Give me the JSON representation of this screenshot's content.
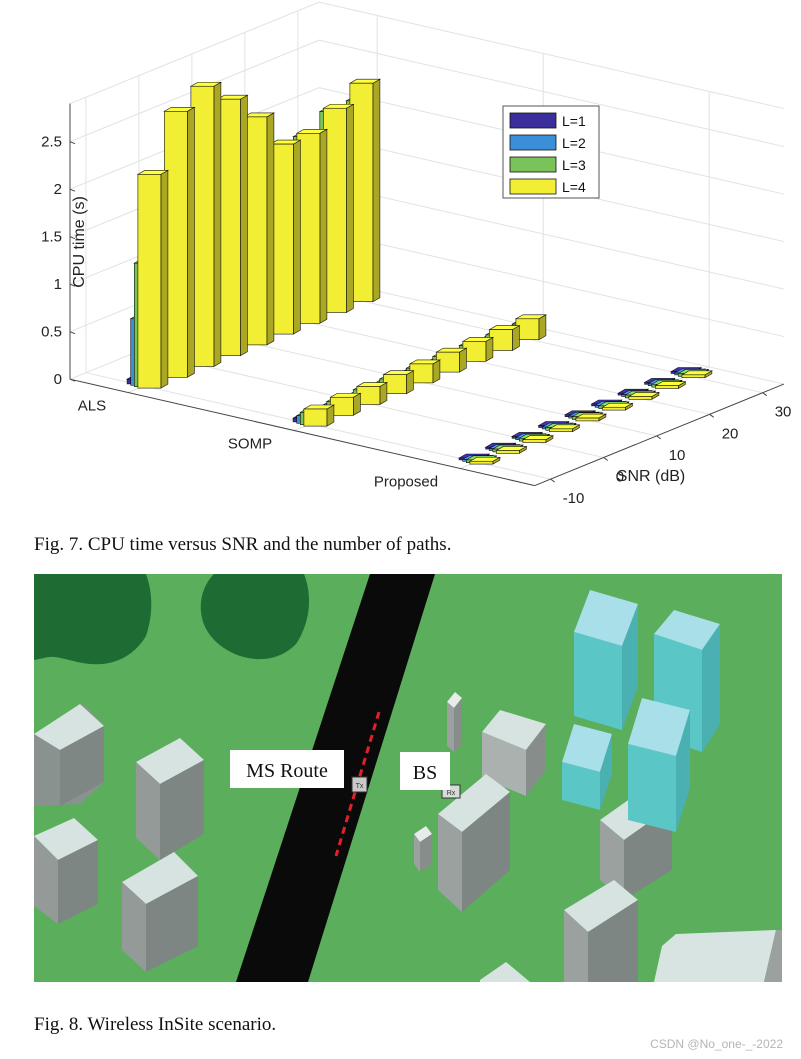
{
  "figure7": {
    "caption": "Fig. 7.  CPU time versus SNR and the number of paths."
  },
  "chart_data": {
    "type": "bar",
    "subtype": "3d-grouped",
    "title": "",
    "ylabel": "CPU time (s)",
    "xlabel": "SNR (dB)",
    "zlim": [
      0,
      2.9
    ],
    "z_ticks": [
      "0",
      "0.5",
      "1",
      "1.5",
      "2",
      "2.5"
    ],
    "snr_values": [
      -10,
      -5,
      0,
      5,
      10,
      15,
      20,
      25,
      30
    ],
    "snr_tick_labels": [
      "-10",
      "0",
      "10",
      "20",
      "30"
    ],
    "methods": [
      "ALS",
      "SOMP",
      "Proposed"
    ],
    "legend": {
      "entries": [
        "L=1",
        "L=2",
        "L=3",
        "L=4"
      ],
      "location": "top-right"
    },
    "colors": [
      "#3a2d9c",
      "#3a8fd8",
      "#7ac25a",
      "#f2ee34"
    ],
    "grid": true,
    "series": [
      {
        "method": "ALS",
        "name": "L=1",
        "values": [
          0.05,
          0.08,
          0.08,
          0.08,
          0.07,
          0.08,
          0.07,
          0.08,
          0.08
        ]
      },
      {
        "method": "ALS",
        "name": "L=2",
        "values": [
          0.7,
          0.53,
          0.53,
          0.55,
          0.53,
          0.53,
          0.52,
          0.55,
          0.55
        ]
      },
      {
        "method": "ALS",
        "name": "L=3",
        "values": [
          1.3,
          2.0,
          2.15,
          2.15,
          1.95,
          1.95,
          1.95,
          2.1,
          2.1
        ]
      },
      {
        "method": "ALS",
        "name": "L=4",
        "values": [
          2.25,
          2.8,
          2.95,
          2.7,
          2.4,
          2.0,
          2.0,
          2.15,
          2.3
        ]
      },
      {
        "method": "SOMP",
        "name": "L=1",
        "values": [
          0.04,
          0.04,
          0.04,
          0.05,
          0.04,
          0.05,
          0.05,
          0.05,
          0.05
        ]
      },
      {
        "method": "SOMP",
        "name": "L=2",
        "values": [
          0.08,
          0.08,
          0.08,
          0.09,
          0.09,
          0.09,
          0.09,
          0.1,
          0.1
        ]
      },
      {
        "method": "SOMP",
        "name": "L=3",
        "values": [
          0.13,
          0.13,
          0.14,
          0.14,
          0.14,
          0.15,
          0.15,
          0.15,
          0.15
        ]
      },
      {
        "method": "SOMP",
        "name": "L=4",
        "values": [
          0.18,
          0.19,
          0.19,
          0.2,
          0.2,
          0.21,
          0.21,
          0.22,
          0.22
        ]
      },
      {
        "method": "Proposed",
        "name": "L=1",
        "values": [
          0.02,
          0.02,
          0.02,
          0.02,
          0.02,
          0.02,
          0.02,
          0.02,
          0.02
        ]
      },
      {
        "method": "Proposed",
        "name": "L=2",
        "values": [
          0.02,
          0.02,
          0.02,
          0.02,
          0.02,
          0.02,
          0.02,
          0.02,
          0.02
        ]
      },
      {
        "method": "Proposed",
        "name": "L=3",
        "values": [
          0.03,
          0.03,
          0.03,
          0.03,
          0.03,
          0.03,
          0.03,
          0.03,
          0.03
        ]
      },
      {
        "method": "Proposed",
        "name": "L=4",
        "values": [
          0.03,
          0.03,
          0.03,
          0.03,
          0.03,
          0.03,
          0.03,
          0.03,
          0.03
        ]
      }
    ]
  },
  "figure8": {
    "caption": "Fig. 8.  Wireless InSite scenario.",
    "label_ms_route": "MS Route",
    "label_bs": "BS",
    "marker_tx": "Tx",
    "marker_rx": "Rx",
    "colors": {
      "ground": "#5aae5c",
      "road": "#0a0a0a",
      "trees": "#1f6b34",
      "route": "#e0202a"
    }
  },
  "watermark": "CSDN @No_one-_-2022"
}
